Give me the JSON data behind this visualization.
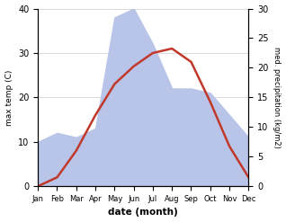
{
  "months": [
    "Jan",
    "Feb",
    "Mar",
    "Apr",
    "May",
    "Jun",
    "Jul",
    "Aug",
    "Sep",
    "Oct",
    "Nov",
    "Dec"
  ],
  "temperature": [
    0,
    2,
    8,
    16,
    23,
    27,
    30,
    31,
    28,
    19,
    9,
    2
  ],
  "precipitation": [
    10,
    12,
    11,
    13,
    38,
    40,
    32,
    22,
    22,
    21,
    16,
    11
  ],
  "temp_color": "#c0392b",
  "precip_fill_color": "#b8c4e8",
  "temp_ylim": [
    0,
    40
  ],
  "precip_ylim": [
    0,
    30
  ],
  "temp_yticks": [
    0,
    10,
    20,
    30,
    40
  ],
  "precip_yticks": [
    0,
    5,
    10,
    15,
    20,
    25,
    30
  ],
  "xlabel": "date (month)",
  "ylabel_left": "max temp (C)",
  "ylabel_right": "med. precipitation (kg/m2)",
  "bg_color": "#ffffff",
  "line_width": 1.8
}
